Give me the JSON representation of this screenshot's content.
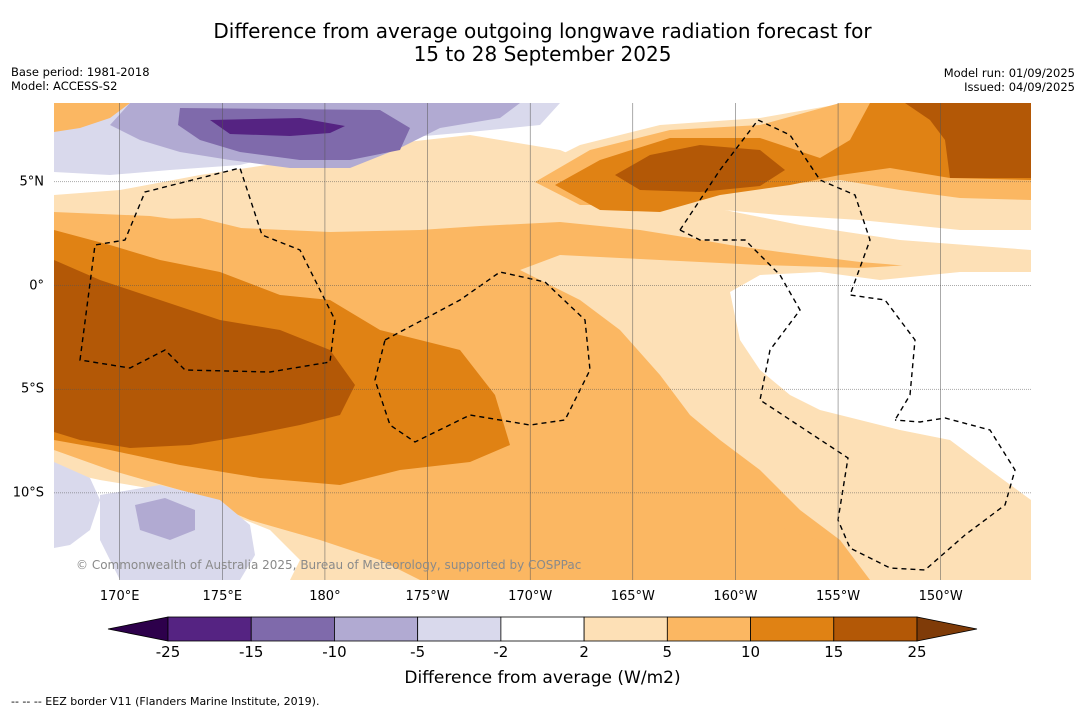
{
  "chart_data": {
    "type": "filled-contour-map",
    "title_lines": [
      "Difference from average outgoing longwave radiation forecast for",
      "15 to 28 September 2025"
    ],
    "meta_left": [
      "Base period: 1981-2018",
      "Model: ACCESS-S2"
    ],
    "meta_right": [
      "Model run: 01/09/2025",
      "Issued: 04/09/2025"
    ],
    "lat_ticks": [
      {
        "value": 5,
        "label": "5°N"
      },
      {
        "value": 0,
        "label": "0°"
      },
      {
        "value": -5,
        "label": "5°S"
      },
      {
        "value": -10,
        "label": "10°S"
      }
    ],
    "lon_ticks": [
      {
        "value": 170,
        "label": "170°E"
      },
      {
        "value": 175,
        "label": "175°E"
      },
      {
        "value": 180,
        "label": "180°"
      },
      {
        "value": 185,
        "label": "175°W"
      },
      {
        "value": 190,
        "label": "170°W"
      },
      {
        "value": 195,
        "label": "165°W"
      },
      {
        "value": 200,
        "label": "160°W"
      },
      {
        "value": 205,
        "label": "155°W"
      },
      {
        "value": 210,
        "label": "150°W"
      }
    ],
    "lon_range": [
      166.8,
      214.4
    ],
    "lat_range": [
      -14.2,
      8.8
    ],
    "grid": true,
    "colorbar": {
      "label": "Difference from average (W/m2)",
      "boundaries": [
        -25,
        -15,
        -10,
        -5,
        -2,
        2,
        5,
        10,
        15,
        25
      ],
      "tick_labels": [
        "-25",
        "-15",
        "-10",
        "-5",
        "-2",
        "2",
        "5",
        "10",
        "15",
        "25"
      ],
      "colors": [
        "#552382",
        "#7f6aab",
        "#b1aad2",
        "#d9d9ec",
        "#ffffff",
        "#fde0b6",
        "#fbb762",
        "#e08214",
        "#b35806"
      ],
      "under_color": "#2d004b",
      "over_color": "#7f3b08"
    },
    "copyright": "© Commonwealth of Australia 2025, Bureau of Meteorology, supported by COSPPac",
    "footnote": "-- -- -- EEZ border V11 (Flanders Marine Institute, 2019)."
  }
}
